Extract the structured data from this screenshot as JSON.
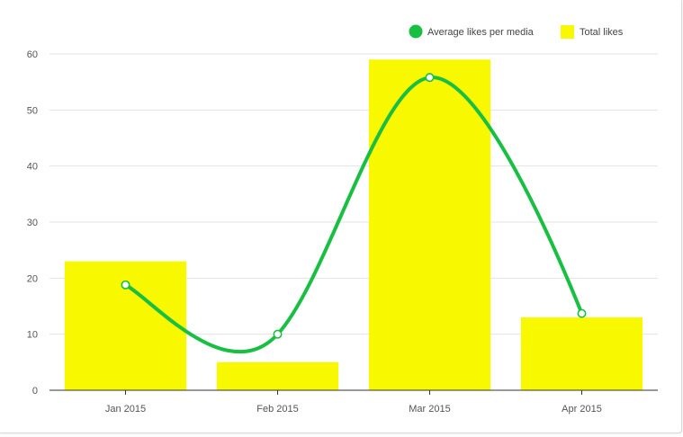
{
  "chart_data": {
    "type": "bar",
    "categories": [
      "Jan 2015",
      "Feb 2015",
      "Mar 2015",
      "Apr 2015"
    ],
    "series": [
      {
        "name": "Total likes",
        "type": "bar",
        "color": "#f8f800",
        "values": [
          23,
          5,
          59,
          13
        ]
      },
      {
        "name": "Average likes per media",
        "type": "line",
        "smooth": true,
        "color": "#19bf43",
        "values": [
          18.8,
          10,
          55.8,
          13.7
        ]
      }
    ],
    "title": "",
    "xlabel": "",
    "ylabel": "",
    "ylim": [
      0,
      60
    ],
    "yticks": [
      0,
      10,
      20,
      30,
      40,
      50,
      60
    ],
    "grid": true,
    "legend": {
      "position": "top-right",
      "items": [
        {
          "label": "Average likes per media",
          "color": "#19bf43",
          "marker": "circle"
        },
        {
          "label": "Total likes",
          "color": "#f8f800",
          "marker": "square"
        }
      ]
    }
  }
}
